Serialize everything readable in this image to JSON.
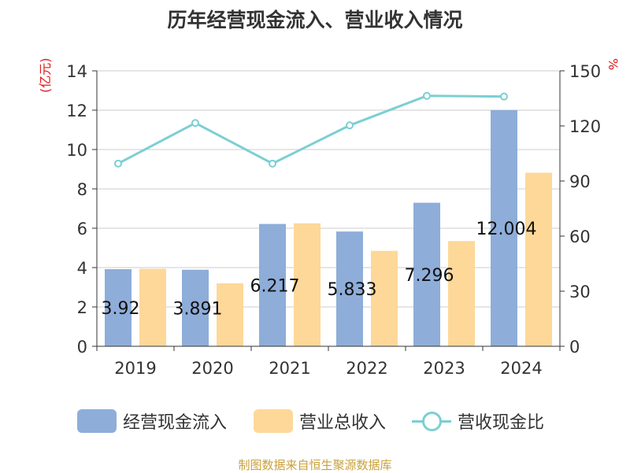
{
  "chart_data": {
    "type": "bar",
    "title": "历年经营现金流入、营业收入情况",
    "categories": [
      "2019",
      "2020",
      "2021",
      "2022",
      "2023",
      "2024"
    ],
    "series": [
      {
        "name": "经营现金流入",
        "type": "bar",
        "axis": "left",
        "color": "#8eadd9",
        "values": [
          3.92,
          3.891,
          6.217,
          5.833,
          7.296,
          12.004
        ],
        "labels": [
          "3.92",
          "3.891",
          "6.217",
          "5.833",
          "7.296",
          "12.004"
        ]
      },
      {
        "name": "营业总收入",
        "type": "bar",
        "axis": "left",
        "color": "#fdd898",
        "values": [
          3.94,
          3.2,
          6.25,
          4.85,
          5.35,
          8.82
        ]
      },
      {
        "name": "营收现金比",
        "type": "line",
        "axis": "right",
        "color": "#7ccfd3",
        "values": [
          99.5,
          121.6,
          99.5,
          120.3,
          136.4,
          136.0
        ]
      }
    ],
    "y_left": {
      "label": "(亿元)",
      "min": 0,
      "max": 14,
      "ticks": [
        0,
        2,
        4,
        6,
        8,
        10,
        12,
        14
      ]
    },
    "y_right": {
      "label": "%",
      "min": 0,
      "max": 150,
      "ticks": [
        0,
        30,
        60,
        90,
        120,
        150
      ]
    },
    "grid": true,
    "legend_position": "bottom"
  },
  "source": "制图数据来自恒生聚源数据库"
}
